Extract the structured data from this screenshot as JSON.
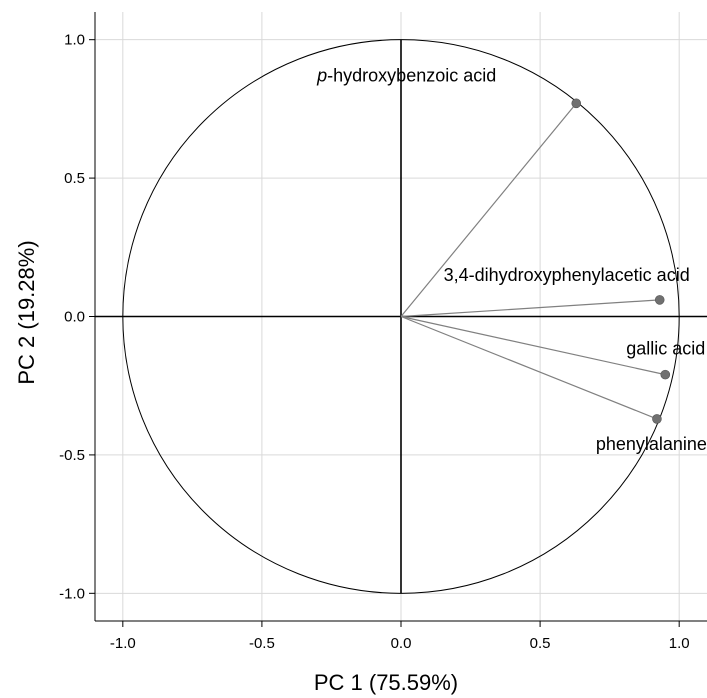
{
  "chart_data": {
    "type": "scatter",
    "xlabel": "PC 1 (75.59%)",
    "ylabel": "PC 2 (19.28%)",
    "xlim": [
      -1.1,
      1.1
    ],
    "ylim": [
      -1.1,
      1.1
    ],
    "xticks": [
      "-1.0",
      "-0.5",
      "0.0",
      "0.5",
      "1.0"
    ],
    "yticks": [
      "1.0",
      "0.5",
      "0.0",
      "-0.5",
      "-1.0"
    ],
    "xtick_values": [
      -1.0,
      -0.5,
      0.0,
      0.5,
      1.0
    ],
    "ytick_values": [
      1.0,
      0.5,
      0.0,
      -0.5,
      -1.0
    ],
    "grid": true,
    "unit_circle": true,
    "points": [
      {
        "label_prefix": "p",
        "label_rest": "-hydroxybenzoic acid",
        "x": 0.63,
        "y": 0.77
      },
      {
        "label_prefix": "",
        "label_rest": "3,4-dihydroxyphenylacetic acid",
        "x": 0.93,
        "y": 0.06
      },
      {
        "label_prefix": "",
        "label_rest": "gallic acid",
        "x": 0.95,
        "y": -0.21
      },
      {
        "label_prefix": "",
        "label_rest": "phenylalanine",
        "x": 0.92,
        "y": -0.37
      }
    ],
    "colors": {
      "vector": "#808080",
      "point": "#707070",
      "grid": "#d9d9d9",
      "axis": "#000000"
    }
  }
}
